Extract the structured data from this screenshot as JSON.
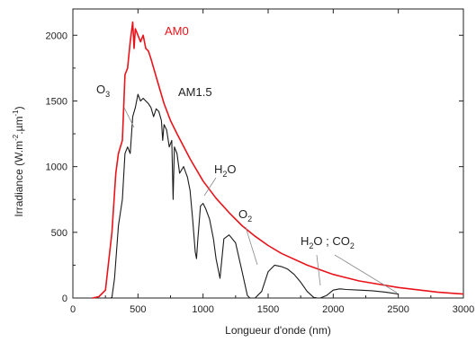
{
  "chart_data": {
    "type": "line",
    "xlabel": "Longueur d'onde (nm)",
    "ylabel": {
      "base": "Irradiance (W.m",
      "exp1": "-2",
      "mid": ".µm",
      "exp2": "-1",
      "end": ")"
    },
    "xlim": [
      0,
      3000
    ],
    "ylim": [
      0,
      2200
    ],
    "xticks": [
      0,
      500,
      1000,
      1500,
      2000,
      2500,
      3000
    ],
    "yticks": [
      0,
      500,
      1000,
      1500,
      2000
    ],
    "grid": false,
    "colors": {
      "AM0": "#e8141b",
      "AM1.5": "#1a1a1a",
      "frame": "#222222"
    },
    "series": [
      {
        "name": "AM0",
        "x": [
          150,
          200,
          250,
          300,
          330,
          350,
          380,
          400,
          420,
          440,
          460,
          470,
          480,
          500,
          520,
          540,
          560,
          580,
          600,
          650,
          700,
          750,
          800,
          900,
          1000,
          1100,
          1200,
          1300,
          1400,
          1500,
          1600,
          1800,
          2000,
          2200,
          2500,
          2800,
          3000
        ],
        "y": [
          0,
          10,
          60,
          500,
          950,
          1100,
          1200,
          1700,
          1750,
          1950,
          2100,
          1900,
          2050,
          2000,
          1950,
          2000,
          1900,
          1880,
          1820,
          1650,
          1480,
          1350,
          1250,
          1060,
          890,
          760,
          650,
          550,
          470,
          400,
          340,
          250,
          180,
          130,
          80,
          45,
          30
        ]
      },
      {
        "name": "AM1.5",
        "x": [
          290,
          300,
          320,
          350,
          380,
          400,
          420,
          440,
          460,
          480,
          500,
          520,
          540,
          560,
          580,
          600,
          620,
          640,
          660,
          680,
          690,
          700,
          720,
          740,
          760,
          770,
          780,
          800,
          820,
          850,
          880,
          900,
          920,
          940,
          950,
          960,
          980,
          1000,
          1020,
          1050,
          1080,
          1100,
          1120,
          1130,
          1140,
          1160,
          1200,
          1250,
          1300,
          1340,
          1360,
          1400,
          1450,
          1500,
          1550,
          1600,
          1650,
          1700,
          1750,
          1800,
          1850,
          1880,
          1900,
          1950,
          2000,
          2050,
          2100,
          2200,
          2300,
          2400,
          2500
        ],
        "y": [
          0,
          5,
          150,
          550,
          750,
          1100,
          1150,
          1100,
          1380,
          1450,
          1550,
          1500,
          1520,
          1500,
          1480,
          1450,
          1380,
          1440,
          1420,
          1350,
          1200,
          1320,
          1280,
          1150,
          1200,
          750,
          1150,
          1100,
          950,
          1000,
          920,
          820,
          600,
          350,
          300,
          450,
          700,
          720,
          680,
          600,
          450,
          300,
          200,
          150,
          250,
          450,
          480,
          420,
          200,
          20,
          0,
          0,
          50,
          200,
          250,
          240,
          220,
          180,
          120,
          50,
          5,
          0,
          0,
          20,
          60,
          70,
          65,
          60,
          55,
          45,
          30
        ]
      }
    ],
    "annotations": {
      "am0": "AM0",
      "am15": "AM1.5",
      "o3": {
        "base": "O",
        "sub": "3"
      },
      "h2o_1": {
        "a": "H",
        "sub": "2",
        "b": "O"
      },
      "o2": {
        "base": "O",
        "sub": "2"
      },
      "h2o_co2": {
        "a": "H",
        "sub1": "2",
        "b": "O ; CO",
        "sub2": "2"
      }
    }
  }
}
